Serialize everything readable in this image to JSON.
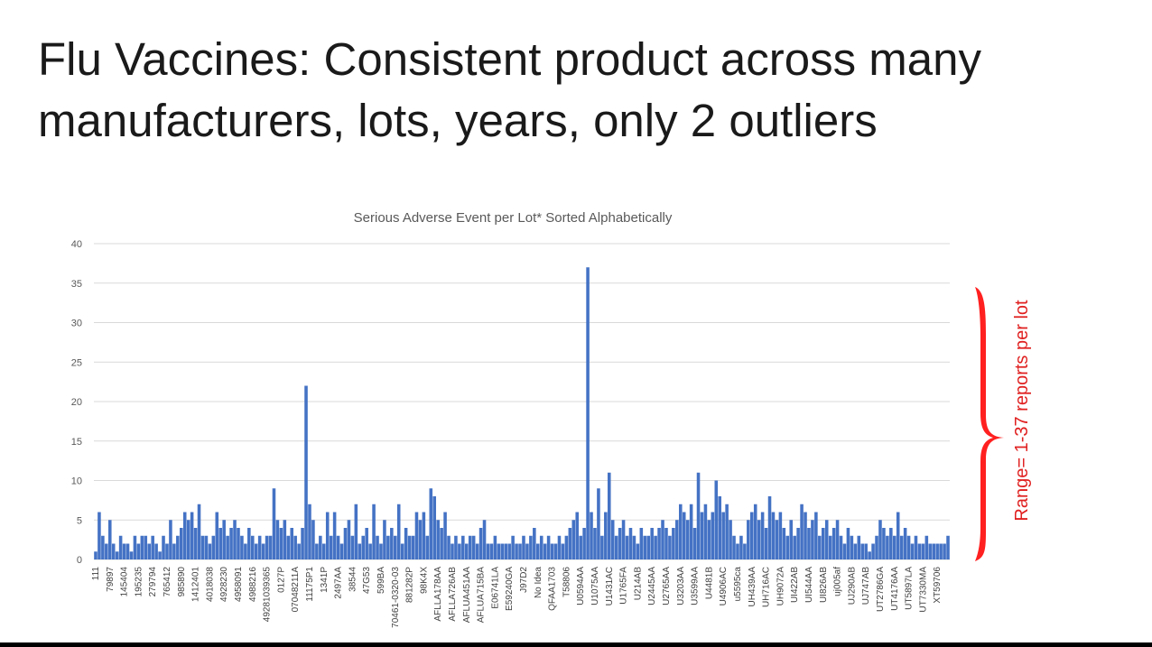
{
  "slide": {
    "title": [
      "Flu Vaccines: Consistent product across many",
      "manufacturers, lots, years, only 2 outliers"
    ]
  },
  "chart_data": {
    "type": "bar",
    "title": "Serious Adverse Event per Lot* Sorted Alphabetically",
    "annotation": "Range= 1-37 reports per lot",
    "color": "#4472c4",
    "grid": true,
    "ylim": [
      0,
      40
    ],
    "yticks": [
      0,
      5,
      10,
      15,
      20,
      25,
      30,
      35,
      40
    ],
    "categories": [
      "111",
      null,
      null,
      null,
      "79897",
      null,
      null,
      null,
      "145404",
      null,
      null,
      null,
      "195235",
      null,
      null,
      null,
      "279794",
      null,
      null,
      null,
      "765412",
      null,
      null,
      null,
      "985890",
      null,
      null,
      null,
      "1412401",
      null,
      null,
      null,
      "4018038",
      null,
      null,
      null,
      "4928230",
      null,
      null,
      null,
      "4958091",
      null,
      null,
      null,
      "4988216",
      null,
      null,
      null,
      "49281039365",
      null,
      null,
      null,
      "0127P",
      null,
      null,
      null,
      "07048211A",
      null,
      null,
      null,
      "11175P1",
      null,
      null,
      null,
      "1341P",
      null,
      null,
      null,
      "2497AA",
      null,
      null,
      null,
      "38544",
      null,
      null,
      null,
      "47G53",
      null,
      null,
      null,
      "599BA",
      null,
      null,
      null,
      "70461-0320-03",
      null,
      null,
      null,
      "881282P",
      null,
      null,
      null,
      "98K4X",
      null,
      null,
      null,
      "AFLLA178AA",
      null,
      null,
      null,
      "AFLLA726AB",
      null,
      null,
      null,
      "AFLUA451AA",
      null,
      null,
      null,
      "AFLUA715BA",
      null,
      null,
      null,
      "E06741LA",
      null,
      null,
      null,
      "E59240GA",
      null,
      null,
      null,
      "J97D2",
      null,
      null,
      null,
      "No Idea",
      null,
      null,
      null,
      "QFAA1703",
      null,
      null,
      null,
      "T58806",
      null,
      null,
      null,
      "U0594AA",
      null,
      null,
      null,
      "U1075AA",
      null,
      null,
      null,
      "U1431AC",
      null,
      null,
      null,
      "U1765FA",
      null,
      null,
      null,
      "U214AB",
      null,
      null,
      null,
      "U2445AA",
      null,
      null,
      null,
      "U2765AA",
      null,
      null,
      null,
      "U3203AA",
      null,
      null,
      null,
      "U3599AA",
      null,
      null,
      null,
      "U4481B",
      null,
      null,
      null,
      "U4906AC",
      null,
      null,
      null,
      "u5595ca",
      null,
      null,
      null,
      "UH439AA",
      null,
      null,
      null,
      "UH716AC",
      null,
      null,
      null,
      "UH9072A",
      null,
      null,
      null,
      "UI422AB",
      null,
      null,
      null,
      "UI544AA",
      null,
      null,
      null,
      "UI826AB",
      null,
      null,
      null,
      "uj005af",
      null,
      null,
      null,
      "UJ290AB",
      null,
      null,
      null,
      "UJ747AB",
      null,
      null,
      null,
      "UT2786GA",
      null,
      null,
      null,
      "UT4176AA",
      null,
      null,
      null,
      "UT5897LA",
      null,
      null,
      null,
      "UT7330MA",
      null,
      null,
      null,
      "XT59706",
      null,
      null,
      null
    ],
    "values": [
      1,
      6,
      3,
      2,
      5,
      2,
      1,
      3,
      2,
      2,
      1,
      3,
      2,
      3,
      3,
      2,
      3,
      2,
      1,
      3,
      2,
      5,
      2,
      3,
      4,
      6,
      5,
      6,
      4,
      7,
      3,
      3,
      2,
      3,
      6,
      4,
      5,
      3,
      4,
      5,
      4,
      3,
      2,
      4,
      3,
      2,
      3,
      2,
      3,
      3,
      9,
      5,
      4,
      5,
      3,
      4,
      3,
      2,
      4,
      22,
      7,
      5,
      2,
      3,
      2,
      6,
      3,
      6,
      3,
      2,
      4,
      5,
      3,
      7,
      2,
      3,
      4,
      2,
      7,
      3,
      2,
      5,
      3,
      4,
      3,
      7,
      2,
      4,
      3,
      3,
      6,
      5,
      6,
      3,
      9,
      8,
      5,
      4,
      6,
      3,
      2,
      3,
      2,
      3,
      2,
      3,
      3,
      2,
      4,
      5,
      2,
      2,
      3,
      2,
      2,
      2,
      2,
      3,
      2,
      2,
      3,
      2,
      3,
      4,
      2,
      3,
      2,
      3,
      2,
      2,
      3,
      2,
      3,
      4,
      5,
      6,
      3,
      4,
      37,
      6,
      4,
      9,
      3,
      6,
      11,
      5,
      3,
      4,
      5,
      3,
      4,
      3,
      2,
      4,
      3,
      3,
      4,
      3,
      4,
      5,
      4,
      3,
      4,
      5,
      7,
      6,
      5,
      7,
      4,
      11,
      6,
      7,
      5,
      6,
      10,
      8,
      6,
      7,
      5,
      3,
      2,
      3,
      2,
      5,
      6,
      7,
      5,
      6,
      4,
      8,
      6,
      5,
      6,
      4,
      3,
      5,
      3,
      4,
      7,
      6,
      4,
      5,
      6,
      3,
      4,
      5,
      3,
      4,
      5,
      3,
      2,
      4,
      3,
      2,
      3,
      2,
      2,
      1,
      2,
      3,
      5,
      4,
      3,
      4,
      3,
      6,
      3,
      4,
      3,
      2,
      3,
      2,
      2,
      3,
      2,
      2,
      2,
      2,
      2,
      3
    ]
  }
}
